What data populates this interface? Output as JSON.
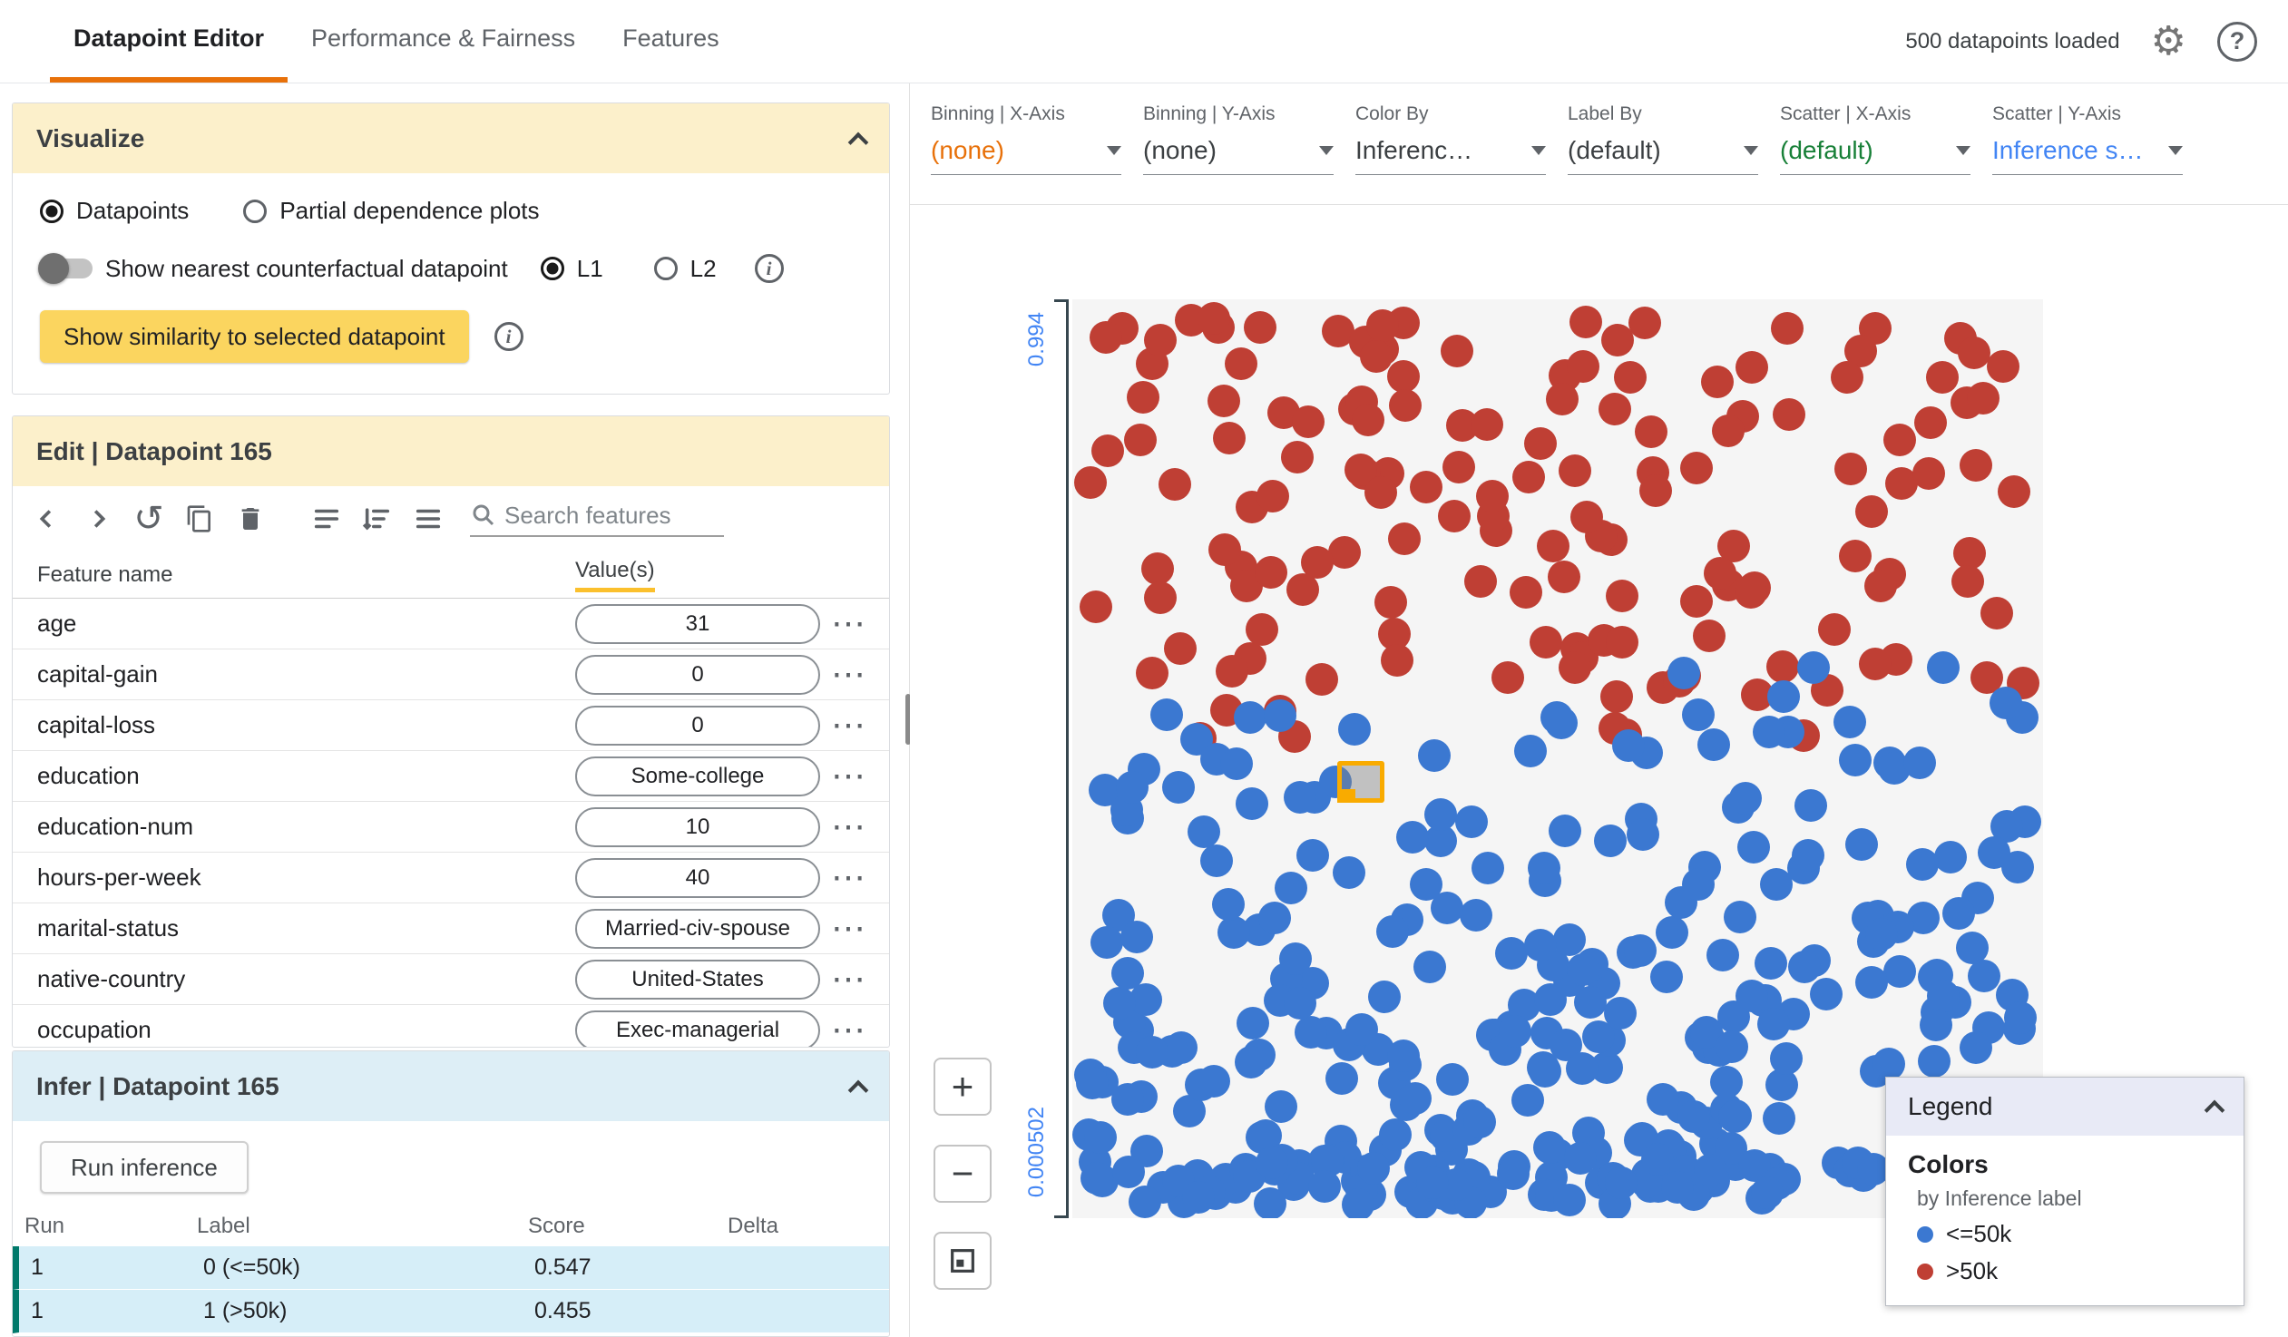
{
  "header": {
    "tabs": [
      {
        "label": "Datapoint Editor",
        "active": true
      },
      {
        "label": "Performance & Fairness",
        "active": false
      },
      {
        "label": "Features",
        "active": false
      }
    ],
    "datapoints_loaded": "500 datapoints loaded",
    "settings_icon": "⚙",
    "help_icon": "?"
  },
  "visualize": {
    "title": "Visualize",
    "radio_datapoints": "Datapoints",
    "radio_pdp": "Partial dependence plots",
    "toggle_label": "Show nearest counterfactual datapoint",
    "l1": "L1",
    "l2": "L2",
    "similarity_button": "Show similarity to selected datapoint"
  },
  "edit": {
    "title": "Edit | Datapoint 165",
    "search_placeholder": "Search features",
    "columns": {
      "feature": "Feature name",
      "values": "Value(s)"
    },
    "features": [
      {
        "name": "age",
        "value": "31"
      },
      {
        "name": "capital-gain",
        "value": "0"
      },
      {
        "name": "capital-loss",
        "value": "0"
      },
      {
        "name": "education",
        "value": "Some-college"
      },
      {
        "name": "education-num",
        "value": "10"
      },
      {
        "name": "hours-per-week",
        "value": "40"
      },
      {
        "name": "marital-status",
        "value": "Married-civ-spouse"
      },
      {
        "name": "native-country",
        "value": "United-States"
      },
      {
        "name": "occupation",
        "value": "Exec-managerial"
      }
    ]
  },
  "infer": {
    "title": "Infer | Datapoint 165",
    "run_button": "Run inference",
    "columns": [
      "Run",
      "Label",
      "Score",
      "Delta"
    ],
    "rows": [
      {
        "run": "1",
        "label": "0 (<=50k)",
        "score": "0.547",
        "delta": ""
      },
      {
        "run": "1",
        "label": "1 (>50k)",
        "score": "0.455",
        "delta": ""
      }
    ]
  },
  "controls": [
    {
      "label": "Binning | X-Axis",
      "value": "(none)",
      "color": "#e8710a"
    },
    {
      "label": "Binning | Y-Axis",
      "value": "(none)",
      "color": "#3c4043"
    },
    {
      "label": "Color By",
      "value": "Inferenc…",
      "color": "#3c4043"
    },
    {
      "label": "Label By",
      "value": "(default)",
      "color": "#3c4043"
    },
    {
      "label": "Scatter | X-Axis",
      "value": "(default)",
      "color": "#188038"
    },
    {
      "label": "Scatter | Y-Axis",
      "value": "Inference s…",
      "color": "#4285f4"
    }
  ],
  "plot": {
    "y_top_label": "0.994",
    "y_bottom_label": "0.000502",
    "zoom_in": "+",
    "zoom_out": "−",
    "colors": {
      "blue": "#3b78d1",
      "red": "#bf3f34",
      "selected": "#f9ab00"
    },
    "scatter": {
      "seed": 42,
      "red_count": 150,
      "blue_count": 270,
      "bottom_count": 78,
      "dot_size": 36,
      "selected": {
        "x": 0.297,
        "y": 0.525
      }
    }
  },
  "legend": {
    "title": "Legend",
    "colors_heading": "Colors",
    "subtitle": "by Inference label",
    "items": [
      {
        "label": "<=50k",
        "color": "#3b78d1"
      },
      {
        "label": ">50k",
        "color": "#bf3f34"
      }
    ]
  },
  "colors": {
    "tab_accent": "#e8710a",
    "card_header_yellow": "#fcf0cb",
    "button_yellow": "#fbd55f",
    "sort_underline": "#fbc02d",
    "infer_header_blue": "#ddeef6",
    "infer_row_bg": "#d6eef8",
    "infer_row_accent": "#00796b",
    "legend_header": "#e8eaf6",
    "axis_label_blue": "#4285f4",
    "plot_bg": "#f5f5f5"
  }
}
